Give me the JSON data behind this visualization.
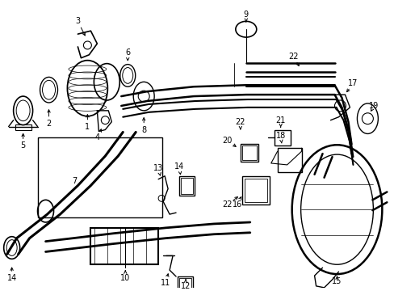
{
  "bg_color": "#ffffff",
  "line_color": "#000000",
  "line_width": 1.0,
  "fig_width": 4.89,
  "fig_height": 3.6,
  "dpi": 100
}
